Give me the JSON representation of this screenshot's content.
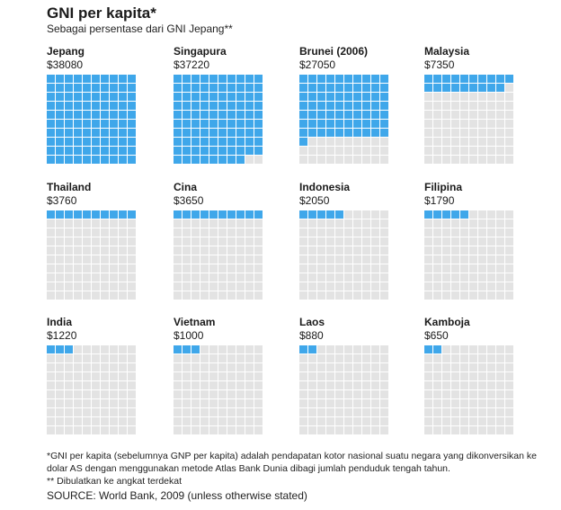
{
  "title": "GNI per kapita*",
  "subtitle": "Sebagai persentase dari GNI Jepang**",
  "chart_data": {
    "type": "waffle",
    "title": "GNI per kapita*",
    "subtitle": "Sebagai persentase dari GNI Jepang**",
    "grid_cells": 100,
    "categories": [
      "Jepang",
      "Singapura",
      "Brunei (2006)",
      "Malaysia",
      "Thailand",
      "Cina",
      "Indonesia",
      "Filipina",
      "India",
      "Vietnam",
      "Laos",
      "Kamboja"
    ],
    "value_labels": [
      "$38080",
      "$37220",
      "$27050",
      "$7350",
      "$3760",
      "$3650",
      "$2050",
      "$1790",
      "$1220",
      "$1000",
      "$880",
      "$650"
    ],
    "values": [
      38080,
      37220,
      27050,
      7350,
      3760,
      3650,
      2050,
      1790,
      1220,
      1000,
      880,
      650
    ],
    "percent_of_japan": [
      100,
      98,
      71,
      19,
      10,
      10,
      5,
      5,
      3,
      3,
      2,
      2
    ],
    "colors": {
      "filled": "#3fa7ea",
      "empty": "#e3e3e3"
    }
  },
  "notes": [
    "*GNI per kapita (sebelumnya GNP per kapita) adalah pendapatan kotor nasional suatu negara yang dikonversikan ke dolar AS dengan menggunakan metode Atlas Bank Dunia dibagi jumlah penduduk tengah tahun.",
    "** Dibulatkan ke angkat terdekat"
  ],
  "source": "SOURCE: World Bank, 2009 (unless otherwise stated)"
}
